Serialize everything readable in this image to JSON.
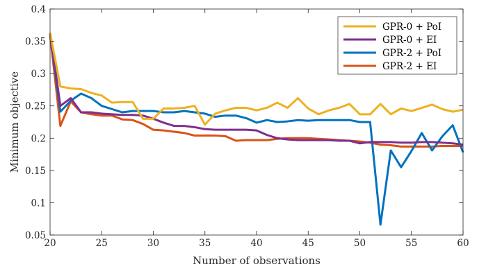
{
  "chart_data": {
    "type": "line",
    "title": "",
    "xlabel": "Number of observations",
    "ylabel": "Minimum objective",
    "xlim": [
      20,
      60
    ],
    "ylim": [
      0.05,
      0.4
    ],
    "xticks": [
      20,
      25,
      30,
      35,
      40,
      45,
      50,
      55,
      60
    ],
    "xtick_labels": [
      "20",
      "25",
      "30",
      "35",
      "40",
      "45",
      "50",
      "55",
      "60"
    ],
    "yticks": [
      0.05,
      0.1,
      0.15,
      0.2,
      0.25,
      0.3,
      0.35,
      0.4
    ],
    "ytick_labels": [
      "0.05",
      "0.1",
      "0.15",
      "0.2",
      "0.25",
      "0.3",
      "0.35",
      "0.4"
    ],
    "grid": false,
    "legend_position": "top-right",
    "x": [
      20,
      21,
      22,
      23,
      24,
      25,
      26,
      27,
      28,
      29,
      30,
      31,
      32,
      33,
      34,
      35,
      36,
      37,
      38,
      39,
      40,
      41,
      42,
      43,
      44,
      45,
      46,
      47,
      48,
      49,
      50,
      51,
      52,
      53,
      54,
      55,
      56,
      57,
      58,
      59,
      60
    ],
    "series": [
      {
        "name": "GPR-0 + PoI",
        "color": "#EDB120",
        "values": [
          0.363,
          0.28,
          0.277,
          0.276,
          0.27,
          0.266,
          0.255,
          0.256,
          0.256,
          0.23,
          0.23,
          0.246,
          0.246,
          0.247,
          0.25,
          0.221,
          0.238,
          0.243,
          0.247,
          0.247,
          0.243,
          0.247,
          0.255,
          0.247,
          0.262,
          0.246,
          0.237,
          0.243,
          0.247,
          0.253,
          0.237,
          0.237,
          0.253,
          0.237,
          0.246,
          0.242,
          0.247,
          0.252,
          0.245,
          0.241,
          0.244
        ]
      },
      {
        "name": "GPR-0 + EI",
        "color": "#7E2F8E",
        "values": [
          0.363,
          0.25,
          0.262,
          0.24,
          0.24,
          0.238,
          0.237,
          0.236,
          0.236,
          0.235,
          0.23,
          0.224,
          0.219,
          0.219,
          0.217,
          0.214,
          0.213,
          0.213,
          0.213,
          0.213,
          0.212,
          0.205,
          0.2,
          0.198,
          0.197,
          0.197,
          0.197,
          0.197,
          0.196,
          0.196,
          0.192,
          0.194,
          0.194,
          0.194,
          0.193,
          0.193,
          0.194,
          0.194,
          0.193,
          0.192,
          0.19
        ]
      },
      {
        "name": "GPR-2 + PoI",
        "color": "#0072BD",
        "values": [
          0.363,
          0.241,
          0.258,
          0.269,
          0.262,
          0.25,
          0.245,
          0.24,
          0.242,
          0.242,
          0.242,
          0.24,
          0.24,
          0.242,
          0.24,
          0.238,
          0.233,
          0.235,
          0.235,
          0.231,
          0.224,
          0.228,
          0.225,
          0.226,
          0.228,
          0.227,
          0.228,
          0.228,
          0.228,
          0.228,
          0.225,
          0.225,
          0.066,
          0.181,
          0.155,
          0.18,
          0.208,
          0.181,
          0.203,
          0.22,
          0.178
        ]
      },
      {
        "name": "GPR-2 + EI",
        "color": "#D95319",
        "values": [
          0.36,
          0.219,
          0.257,
          0.24,
          0.237,
          0.235,
          0.235,
          0.229,
          0.228,
          0.222,
          0.213,
          0.212,
          0.21,
          0.208,
          0.204,
          0.204,
          0.204,
          0.203,
          0.196,
          0.197,
          0.197,
          0.197,
          0.199,
          0.2,
          0.2,
          0.2,
          0.199,
          0.198,
          0.197,
          0.196,
          0.195,
          0.193,
          0.19,
          0.189,
          0.187,
          0.187,
          0.187,
          0.187,
          0.188,
          0.188,
          0.188
        ]
      }
    ]
  }
}
